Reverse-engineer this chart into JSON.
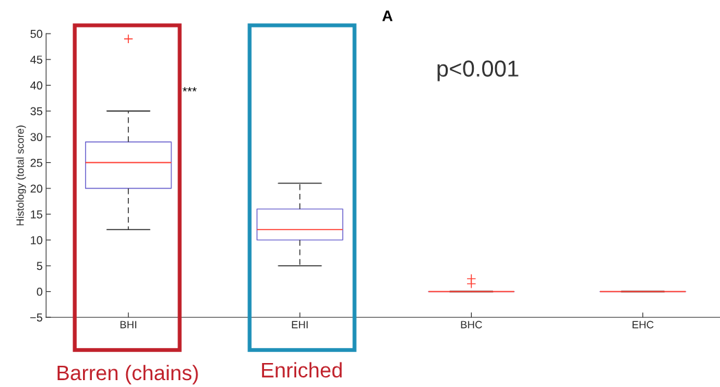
{
  "chart_data": {
    "type": "box",
    "ylabel": "Histology (total score)",
    "categories": [
      "BHI",
      "EHI",
      "BHC",
      "EHC"
    ],
    "boxes": [
      {
        "low": 12,
        "q1": 20,
        "median": 25,
        "q3": 29,
        "high": 35,
        "outliers": [
          49
        ]
      },
      {
        "low": 5,
        "q1": 10,
        "median": 12,
        "q3": 16,
        "high": 21
      },
      {
        "low": 0,
        "q1": 0,
        "median": 0,
        "q3": 0,
        "high": 0,
        "outliers": [
          1.5,
          2.5
        ]
      },
      {
        "low": 0,
        "q1": 0,
        "median": 0,
        "q3": 0,
        "high": 0
      }
    ],
    "color": "#7068d0",
    "marker": "cross",
    "ylim": [
      -5,
      50
    ],
    "yticks": [
      {
        "value": -5,
        "label": "−5"
      },
      0,
      5,
      10,
      15,
      20,
      25,
      30,
      35,
      40,
      45,
      50
    ],
    "grid": false,
    "annotations": [
      "A",
      "***",
      "p<0.001",
      "Barren (chains)",
      "Enriched"
    ]
  }
}
